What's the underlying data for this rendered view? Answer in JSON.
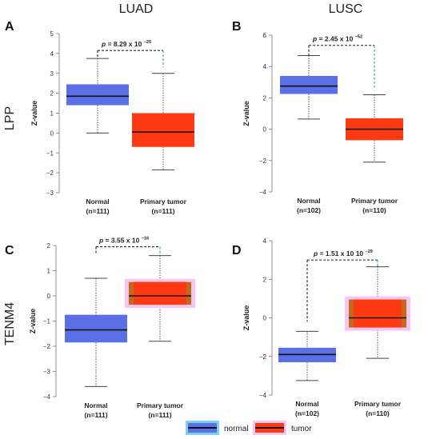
{
  "columns": [
    "LUAD",
    "LUSC"
  ],
  "rows": [
    "LPP",
    "TENM4"
  ],
  "legend": [
    {
      "label": "normal",
      "fill": "#5b6fe6",
      "halo": "#7fd0f5"
    },
    {
      "label": "tumor",
      "fill": "#ff3a12",
      "halo": "#f8c6f2"
    }
  ],
  "colors": {
    "normal": "#5b6fe6",
    "tumor": "#ff3a12",
    "tumor_edge": "#c06a1c",
    "median": "#111111"
  },
  "chart_data": [
    {
      "panel": "A",
      "type": "boxplot",
      "ylabel": "Z-value",
      "ylim": [
        -3,
        5
      ],
      "yticks": [
        -3,
        -2,
        -1,
        0,
        1,
        2,
        3,
        4,
        5
      ],
      "categories": [
        {
          "name": "Normal",
          "n": "(n=111)"
        },
        {
          "name": "Primary tumor",
          "n": "(n=111)"
        }
      ],
      "boxes": [
        {
          "group": "normal",
          "whisker_low": 0.0,
          "q1": 1.4,
          "median": 1.85,
          "q3": 2.45,
          "whisker_high": 3.75
        },
        {
          "group": "tumor",
          "whisker_low": -1.85,
          "q1": -0.7,
          "median": 0.05,
          "q3": 1.0,
          "whisker_high": 3.0
        }
      ],
      "pvalue": {
        "prefix": "p",
        "text": "= 8.29 x 10",
        "exponent": "−25",
        "bracket_y": 4.15,
        "left_drop_to": 3.75,
        "right_drop_to": 3.3
      }
    },
    {
      "panel": "B",
      "type": "boxplot",
      "ylabel": "Z-value",
      "ylim": [
        -4,
        6
      ],
      "yticks": [
        -4,
        -2,
        0,
        2,
        4,
        6
      ],
      "categories": [
        {
          "name": "Normal",
          "n": "(n=102)"
        },
        {
          "name": "Primary tumor",
          "n": "(n=110)"
        }
      ],
      "boxes": [
        {
          "group": "normal",
          "whisker_low": 0.65,
          "q1": 2.25,
          "median": 2.75,
          "q3": 3.4,
          "whisker_high": 4.7
        },
        {
          "group": "tumor",
          "whisker_low": -2.1,
          "q1": -0.7,
          "median": 0.0,
          "q3": 0.7,
          "whisker_high": 2.2
        }
      ],
      "pvalue": {
        "prefix": "p",
        "text": "= 2.45 x 10",
        "exponent": "−52",
        "bracket_y": 5.35,
        "left_drop_to": 4.7,
        "right_drop_to": 2.6
      }
    },
    {
      "panel": "C",
      "type": "boxplot",
      "ylabel": "Z-value",
      "ylim": [
        -4,
        2
      ],
      "yticks": [
        -4,
        -3,
        -2,
        -1,
        0,
        1,
        2
      ],
      "categories": [
        {
          "name": "Normal",
          "n": "(n=111)"
        },
        {
          "name": "Primary tumor",
          "n": "(n=111)"
        }
      ],
      "boxes": [
        {
          "group": "normal",
          "whisker_low": -3.6,
          "q1": -1.85,
          "median": -1.35,
          "q3": -0.75,
          "whisker_high": 0.7,
          "style": "plain"
        },
        {
          "group": "tumor",
          "whisker_low": -1.8,
          "q1": -0.35,
          "median": 0.0,
          "q3": 0.55,
          "whisker_high": 1.6,
          "style": "haloed"
        }
      ],
      "pvalue": {
        "prefix": "p",
        "text": "= 3.55 x 10",
        "exponent": "−16",
        "bracket_y": 1.95,
        "left_drop_to": 1.7,
        "right_drop_to": 1.6
      }
    },
    {
      "panel": "D",
      "type": "boxplot",
      "ylabel": "Z-value",
      "ylim": [
        -4,
        4
      ],
      "yticks": [
        -4,
        -2,
        0,
        2,
        4
      ],
      "categories": [
        {
          "name": "Normal",
          "n": "(n=102)"
        },
        {
          "name": "Primary tumor",
          "n": "(n=110)"
        }
      ],
      "boxes": [
        {
          "group": "normal",
          "whisker_low": -3.25,
          "q1": -2.3,
          "median": -1.9,
          "q3": -1.55,
          "whisker_high": -0.7,
          "style": "plain"
        },
        {
          "group": "tumor",
          "whisker_low": -2.1,
          "q1": -0.5,
          "median": 0.0,
          "q3": 0.95,
          "whisker_high": 2.65,
          "style": "haloed"
        }
      ],
      "pvalue": {
        "prefix": "p",
        "text": "= 1.51 x 10 10",
        "exponent": "−29",
        "bracket_y": 3.0,
        "left_drop_to": -0.2,
        "right_drop_to": 2.65
      }
    }
  ]
}
